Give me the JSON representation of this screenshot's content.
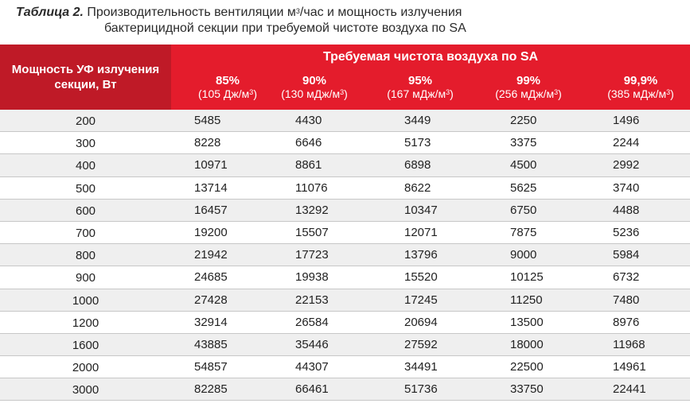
{
  "caption": {
    "lead": "Таблица 2.",
    "line1_text": " Производительность вентиляции м",
    "line1_sup": "3",
    "line1_rest": "/час и мощность излучения",
    "line2": "бактерицидной секции при требуемой чистоте воздуха по SA"
  },
  "header": {
    "col0": "Мощность УФ излучения секции, Вт",
    "group": "Требуемая чистота воздуха по SA",
    "purities": [
      {
        "pct": "85%",
        "energy": "(105 Дж/м",
        "sup": "3",
        "close": ")"
      },
      {
        "pct": "90%",
        "energy": "(130 мДж/м",
        "sup": "3",
        "close": ")"
      },
      {
        "pct": "95%",
        "energy": "(167 мДж/м",
        "sup": "3",
        "close": ")"
      },
      {
        "pct": "99%",
        "energy": "(256 мДж/м",
        "sup": "3",
        "close": ")"
      },
      {
        "pct": "99,9%",
        "energy": "(385 мДж/м",
        "sup": "3",
        "close": ")"
      }
    ]
  },
  "rows": [
    [
      "200",
      "5485",
      "4430",
      "3449",
      "2250",
      "1496"
    ],
    [
      "300",
      "8228",
      "6646",
      "5173",
      "3375",
      "2244"
    ],
    [
      "400",
      "10971",
      "8861",
      "6898",
      "4500",
      "2992"
    ],
    [
      "500",
      "13714",
      "11076",
      "8622",
      "5625",
      "3740"
    ],
    [
      "600",
      "16457",
      "13292",
      "10347",
      "6750",
      "4488"
    ],
    [
      "700",
      "19200",
      "15507",
      "12071",
      "7875",
      "5236"
    ],
    [
      "800",
      "21942",
      "17723",
      "13796",
      "9000",
      "5984"
    ],
    [
      "900",
      "24685",
      "19938",
      "15520",
      "10125",
      "6732"
    ],
    [
      "1000",
      "27428",
      "22153",
      "17245",
      "11250",
      "7480"
    ],
    [
      "1200",
      "32914",
      "26584",
      "20694",
      "13500",
      "8976"
    ],
    [
      "1600",
      "43885",
      "35446",
      "27592",
      "18000",
      "11968"
    ],
    [
      "2000",
      "54857",
      "44307",
      "34491",
      "22500",
      "14961"
    ],
    [
      "3000",
      "82285",
      "66461",
      "51736",
      "33750",
      "22441"
    ]
  ]
}
